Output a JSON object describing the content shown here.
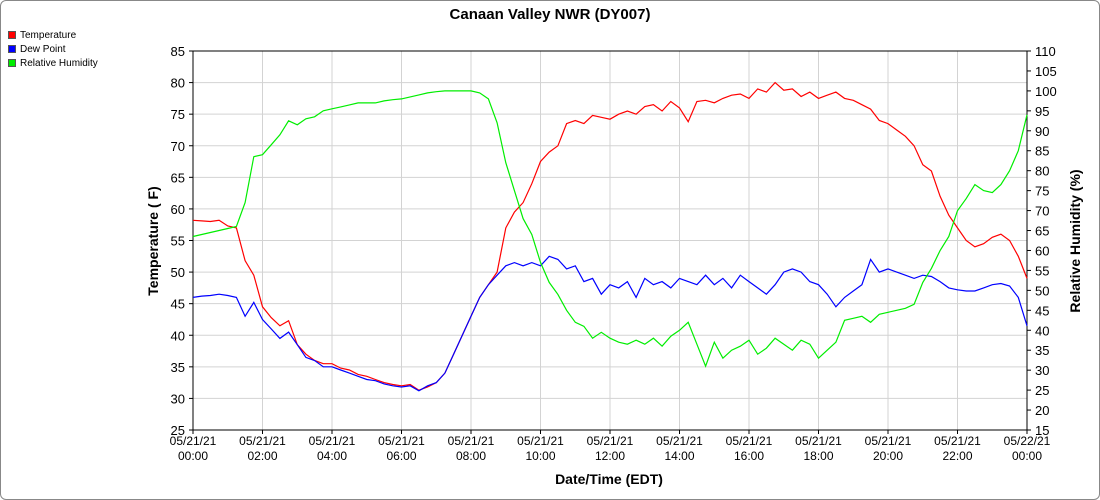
{
  "chart_data": {
    "type": "line",
    "title": "Canaan Valley NWR (DY007)",
    "xlabel": "Date/Time (EDT)",
    "ylabel_left": "Temperature ( F)",
    "ylabel_right": "Relative Humidity (%)",
    "ylim_left": [
      25,
      85
    ],
    "ylim_right": [
      15,
      110
    ],
    "yticks_left": [
      "25",
      "30",
      "35",
      "40",
      "45",
      "50",
      "55",
      "60",
      "65",
      "70",
      "75",
      "80",
      "85"
    ],
    "yticks_right": [
      "15",
      "20",
      "25",
      "30",
      "35",
      "40",
      "45",
      "50",
      "55",
      "60",
      "65",
      "70",
      "75",
      "80",
      "85",
      "90",
      "95",
      "100",
      "105",
      "110"
    ],
    "xlim_hours": [
      0,
      24
    ],
    "xticks": [
      {
        "date": "05/21/21",
        "time": "00:00"
      },
      {
        "date": "05/21/21",
        "time": "02:00"
      },
      {
        "date": "05/21/21",
        "time": "04:00"
      },
      {
        "date": "05/21/21",
        "time": "06:00"
      },
      {
        "date": "05/21/21",
        "time": "08:00"
      },
      {
        "date": "05/21/21",
        "time": "10:00"
      },
      {
        "date": "05/21/21",
        "time": "12:00"
      },
      {
        "date": "05/21/21",
        "time": "14:00"
      },
      {
        "date": "05/21/21",
        "time": "16:00"
      },
      {
        "date": "05/21/21",
        "time": "18:00"
      },
      {
        "date": "05/21/21",
        "time": "20:00"
      },
      {
        "date": "05/21/21",
        "time": "22:00"
      },
      {
        "date": "05/22/21",
        "time": "00:00"
      }
    ],
    "grid": true,
    "legend_position": "top-left",
    "series": [
      {
        "name": "Temperature",
        "color": "#ff0000",
        "axis": "left",
        "points": [
          [
            0,
            58.2
          ],
          [
            0.25,
            58.1
          ],
          [
            0.5,
            58.0
          ],
          [
            0.75,
            58.2
          ],
          [
            1,
            57.3
          ],
          [
            1.25,
            57.0
          ],
          [
            1.5,
            51.8
          ],
          [
            1.75,
            49.5
          ],
          [
            2,
            44.5
          ],
          [
            2.25,
            42.8
          ],
          [
            2.5,
            41.5
          ],
          [
            2.75,
            42.3
          ],
          [
            3,
            38.5
          ],
          [
            3.25,
            37.0
          ],
          [
            3.5,
            36.0
          ],
          [
            3.75,
            35.5
          ],
          [
            4,
            35.5
          ],
          [
            4.25,
            34.8
          ],
          [
            4.5,
            34.5
          ],
          [
            4.75,
            33.8
          ],
          [
            5,
            33.5
          ],
          [
            5.25,
            33.0
          ],
          [
            5.5,
            32.5
          ],
          [
            5.75,
            32.2
          ],
          [
            6,
            32.0
          ],
          [
            6.25,
            32.2
          ],
          [
            6.5,
            31.3
          ],
          [
            6.75,
            31.8
          ],
          [
            7,
            32.5
          ],
          [
            7.25,
            34.0
          ],
          [
            7.5,
            37.0
          ],
          [
            7.75,
            40.0
          ],
          [
            8,
            43.0
          ],
          [
            8.25,
            46.0
          ],
          [
            8.5,
            48.0
          ],
          [
            8.75,
            50.0
          ],
          [
            9,
            57.0
          ],
          [
            9.25,
            59.5
          ],
          [
            9.5,
            61.0
          ],
          [
            9.75,
            64.0
          ],
          [
            10,
            67.5
          ],
          [
            10.25,
            69.0
          ],
          [
            10.5,
            70.0
          ],
          [
            10.75,
            73.5
          ],
          [
            11,
            74.0
          ],
          [
            11.25,
            73.5
          ],
          [
            11.5,
            74.8
          ],
          [
            11.75,
            74.5
          ],
          [
            12,
            74.2
          ],
          [
            12.25,
            75.0
          ],
          [
            12.5,
            75.5
          ],
          [
            12.75,
            75.0
          ],
          [
            13,
            76.2
          ],
          [
            13.25,
            76.5
          ],
          [
            13.5,
            75.5
          ],
          [
            13.75,
            77.0
          ],
          [
            14,
            76.0
          ],
          [
            14.25,
            73.8
          ],
          [
            14.5,
            77.0
          ],
          [
            14.75,
            77.2
          ],
          [
            15,
            76.8
          ],
          [
            15.25,
            77.5
          ],
          [
            15.5,
            78.0
          ],
          [
            15.75,
            78.2
          ],
          [
            16,
            77.5
          ],
          [
            16.25,
            79.0
          ],
          [
            16.5,
            78.5
          ],
          [
            16.75,
            80.0
          ],
          [
            17,
            78.8
          ],
          [
            17.25,
            79.0
          ],
          [
            17.5,
            77.8
          ],
          [
            17.75,
            78.5
          ],
          [
            18,
            77.5
          ],
          [
            18.25,
            78.0
          ],
          [
            18.5,
            78.5
          ],
          [
            18.75,
            77.5
          ],
          [
            19,
            77.2
          ],
          [
            19.25,
            76.5
          ],
          [
            19.5,
            75.8
          ],
          [
            19.75,
            74.0
          ],
          [
            20,
            73.5
          ],
          [
            20.25,
            72.5
          ],
          [
            20.5,
            71.5
          ],
          [
            20.75,
            70.0
          ],
          [
            21,
            67.0
          ],
          [
            21.25,
            66.0
          ],
          [
            21.5,
            62.0
          ],
          [
            21.75,
            59.0
          ],
          [
            22,
            57.0
          ],
          [
            22.25,
            55.0
          ],
          [
            22.5,
            54.0
          ],
          [
            22.75,
            54.5
          ],
          [
            23,
            55.5
          ],
          [
            23.25,
            56.0
          ],
          [
            23.5,
            55.0
          ],
          [
            23.75,
            52.5
          ],
          [
            24,
            49.0
          ]
        ]
      },
      {
        "name": "Dew Point",
        "color": "#0000ff",
        "axis": "left",
        "points": [
          [
            0,
            46.0
          ],
          [
            0.25,
            46.2
          ],
          [
            0.5,
            46.3
          ],
          [
            0.75,
            46.5
          ],
          [
            1,
            46.3
          ],
          [
            1.25,
            46.0
          ],
          [
            1.5,
            43.0
          ],
          [
            1.75,
            45.2
          ],
          [
            2,
            42.5
          ],
          [
            2.25,
            41.0
          ],
          [
            2.5,
            39.5
          ],
          [
            2.75,
            40.5
          ],
          [
            3,
            38.5
          ],
          [
            3.25,
            36.5
          ],
          [
            3.5,
            36.0
          ],
          [
            3.75,
            35.0
          ],
          [
            4,
            35.0
          ],
          [
            4.25,
            34.5
          ],
          [
            4.5,
            34.0
          ],
          [
            4.75,
            33.5
          ],
          [
            5,
            33.0
          ],
          [
            5.25,
            32.8
          ],
          [
            5.5,
            32.3
          ],
          [
            5.75,
            32.0
          ],
          [
            6,
            31.8
          ],
          [
            6.25,
            32.0
          ],
          [
            6.5,
            31.2
          ],
          [
            6.75,
            32.0
          ],
          [
            7,
            32.5
          ],
          [
            7.25,
            34.0
          ],
          [
            7.5,
            37.0
          ],
          [
            7.75,
            40.0
          ],
          [
            8,
            43.0
          ],
          [
            8.25,
            46.0
          ],
          [
            8.5,
            48.0
          ],
          [
            8.75,
            49.5
          ],
          [
            9,
            51.0
          ],
          [
            9.25,
            51.5
          ],
          [
            9.5,
            51.0
          ],
          [
            9.75,
            51.5
          ],
          [
            10,
            51.0
          ],
          [
            10.25,
            52.5
          ],
          [
            10.5,
            52.0
          ],
          [
            10.75,
            50.5
          ],
          [
            11,
            51.0
          ],
          [
            11.25,
            48.5
          ],
          [
            11.5,
            49.0
          ],
          [
            11.75,
            46.5
          ],
          [
            12,
            48.0
          ],
          [
            12.25,
            47.5
          ],
          [
            12.5,
            48.5
          ],
          [
            12.75,
            46.0
          ],
          [
            13,
            49.0
          ],
          [
            13.25,
            48.0
          ],
          [
            13.5,
            48.5
          ],
          [
            13.75,
            47.5
          ],
          [
            14,
            49.0
          ],
          [
            14.25,
            48.5
          ],
          [
            14.5,
            48.0
          ],
          [
            14.75,
            49.5
          ],
          [
            15,
            48.0
          ],
          [
            15.25,
            49.0
          ],
          [
            15.5,
            47.5
          ],
          [
            15.75,
            49.5
          ],
          [
            16,
            48.5
          ],
          [
            16.25,
            47.5
          ],
          [
            16.5,
            46.5
          ],
          [
            16.75,
            48.0
          ],
          [
            17,
            50.0
          ],
          [
            17.25,
            50.5
          ],
          [
            17.5,
            50.0
          ],
          [
            17.75,
            48.5
          ],
          [
            18,
            48.0
          ],
          [
            18.25,
            46.5
          ],
          [
            18.5,
            44.5
          ],
          [
            18.75,
            46.0
          ],
          [
            19,
            47.0
          ],
          [
            19.25,
            48.0
          ],
          [
            19.5,
            52.0
          ],
          [
            19.75,
            50.0
          ],
          [
            20,
            50.5
          ],
          [
            20.25,
            50.0
          ],
          [
            20.5,
            49.5
          ],
          [
            20.75,
            49.0
          ],
          [
            21,
            49.5
          ],
          [
            21.25,
            49.3
          ],
          [
            21.5,
            48.5
          ],
          [
            21.75,
            47.5
          ],
          [
            22,
            47.2
          ],
          [
            22.25,
            47.0
          ],
          [
            22.5,
            47.0
          ],
          [
            22.75,
            47.5
          ],
          [
            23,
            48.0
          ],
          [
            23.25,
            48.2
          ],
          [
            23.5,
            47.8
          ],
          [
            23.75,
            46.0
          ],
          [
            24,
            41.5
          ]
        ]
      },
      {
        "name": "Relative Humidity",
        "color": "#00ee00",
        "axis": "right",
        "points": [
          [
            0,
            63.5
          ],
          [
            0.25,
            64.0
          ],
          [
            0.5,
            64.5
          ],
          [
            0.75,
            65.0
          ],
          [
            1,
            65.5
          ],
          [
            1.25,
            66.0
          ],
          [
            1.5,
            72.0
          ],
          [
            1.75,
            83.5
          ],
          [
            2,
            84.0
          ],
          [
            2.25,
            86.5
          ],
          [
            2.5,
            89.0
          ],
          [
            2.75,
            92.5
          ],
          [
            3,
            91.5
          ],
          [
            3.25,
            93.0
          ],
          [
            3.5,
            93.5
          ],
          [
            3.75,
            95.0
          ],
          [
            4,
            95.5
          ],
          [
            4.25,
            96.0
          ],
          [
            4.5,
            96.5
          ],
          [
            4.75,
            97.0
          ],
          [
            5,
            97.0
          ],
          [
            5.25,
            97.0
          ],
          [
            5.5,
            97.5
          ],
          [
            5.75,
            97.8
          ],
          [
            6,
            98.0
          ],
          [
            6.25,
            98.5
          ],
          [
            6.5,
            99.0
          ],
          [
            6.75,
            99.5
          ],
          [
            7,
            99.8
          ],
          [
            7.25,
            100.0
          ],
          [
            7.5,
            100.0
          ],
          [
            7.75,
            100.0
          ],
          [
            8,
            100.0
          ],
          [
            8.25,
            99.5
          ],
          [
            8.5,
            98.0
          ],
          [
            8.75,
            92.0
          ],
          [
            9,
            82.0
          ],
          [
            9.25,
            75.0
          ],
          [
            9.5,
            68.0
          ],
          [
            9.75,
            64.0
          ],
          [
            10,
            57.0
          ],
          [
            10.25,
            52.0
          ],
          [
            10.5,
            49.0
          ],
          [
            10.75,
            45.0
          ],
          [
            11,
            42.0
          ],
          [
            11.25,
            41.0
          ],
          [
            11.5,
            38.0
          ],
          [
            11.75,
            39.5
          ],
          [
            12,
            38.0
          ],
          [
            12.25,
            37.0
          ],
          [
            12.5,
            36.5
          ],
          [
            12.75,
            37.5
          ],
          [
            13,
            36.5
          ],
          [
            13.25,
            38.0
          ],
          [
            13.5,
            36.0
          ],
          [
            13.75,
            38.5
          ],
          [
            14,
            40.0
          ],
          [
            14.25,
            42.0
          ],
          [
            14.5,
            36.5
          ],
          [
            14.75,
            31.0
          ],
          [
            15,
            37.0
          ],
          [
            15.25,
            33.0
          ],
          [
            15.5,
            35.0
          ],
          [
            15.75,
            36.0
          ],
          [
            16,
            37.5
          ],
          [
            16.25,
            34.0
          ],
          [
            16.5,
            35.5
          ],
          [
            16.75,
            38.0
          ],
          [
            17,
            36.5
          ],
          [
            17.25,
            35.0
          ],
          [
            17.5,
            37.5
          ],
          [
            17.75,
            36.5
          ],
          [
            18,
            33.0
          ],
          [
            18.25,
            35.0
          ],
          [
            18.5,
            37.0
          ],
          [
            18.75,
            42.5
          ],
          [
            19,
            43.0
          ],
          [
            19.25,
            43.5
          ],
          [
            19.5,
            42.0
          ],
          [
            19.75,
            44.0
          ],
          [
            20,
            44.5
          ],
          [
            20.25,
            45.0
          ],
          [
            20.5,
            45.5
          ],
          [
            20.75,
            46.5
          ],
          [
            21,
            52.0
          ],
          [
            21.25,
            55.5
          ],
          [
            21.5,
            60.0
          ],
          [
            21.75,
            63.5
          ],
          [
            22,
            70.0
          ],
          [
            22.25,
            73.0
          ],
          [
            22.5,
            76.5
          ],
          [
            22.75,
            75.0
          ],
          [
            23,
            74.5
          ],
          [
            23.25,
            76.5
          ],
          [
            23.5,
            80.0
          ],
          [
            23.75,
            85.0
          ],
          [
            24,
            94.0
          ]
        ]
      }
    ]
  }
}
